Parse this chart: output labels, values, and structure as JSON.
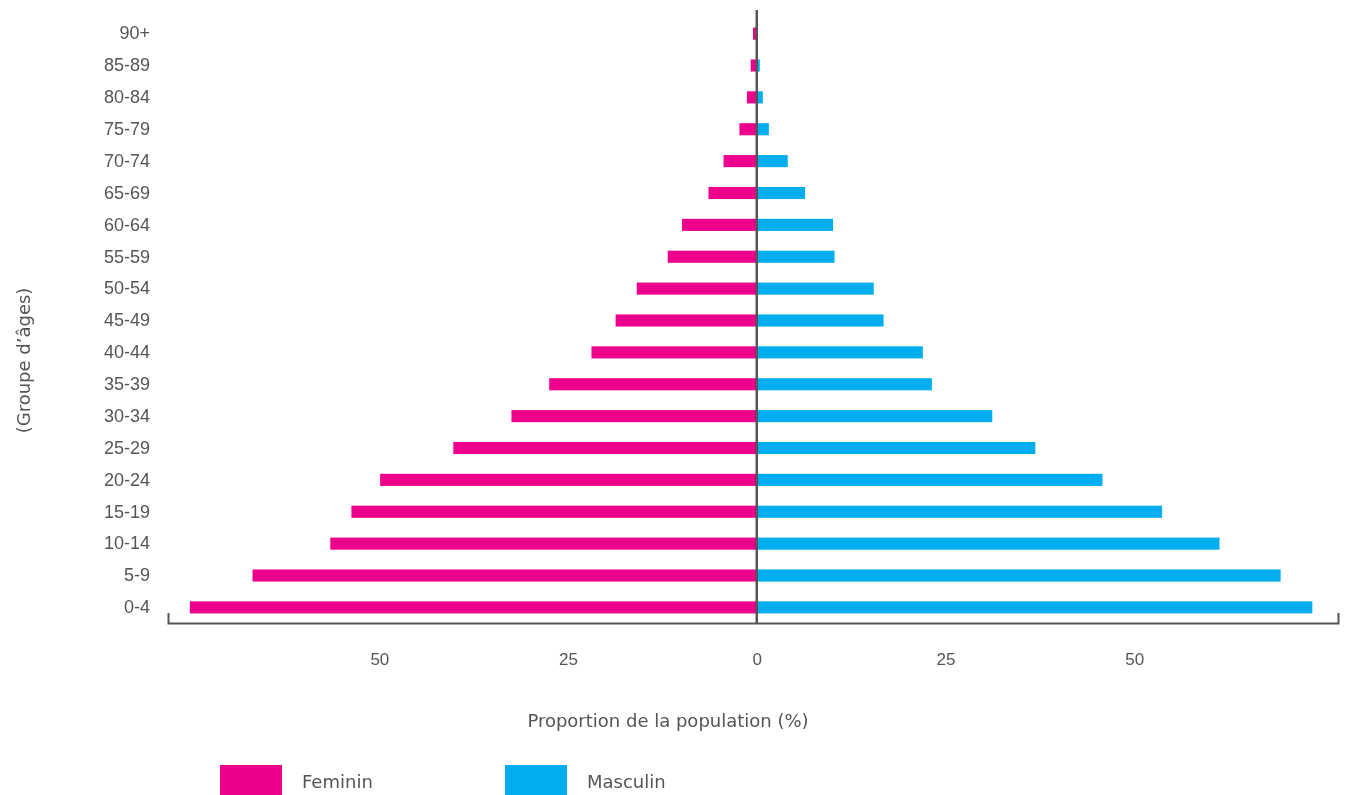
{
  "chart_data": {
    "type": "bar",
    "orientation": "horizontal",
    "stacked": true,
    "xlabel": "Proportion de la population (%)",
    "ylabel": "(Groupe d’âges)",
    "categories": [
      "90+",
      "85-89",
      "80-84",
      "75-79",
      "70-74",
      "65-69",
      "60-64",
      "55-59",
      "50-54",
      "45-49",
      "40-44",
      "35-39",
      "30-34",
      "25-29",
      "20-24",
      "15-19",
      "10-14",
      "5-9",
      "0-4"
    ],
    "series": [
      {
        "name": "Feminin",
        "color": "#ec008c",
        "values": [
          -0.5,
          -0.8,
          -1.3,
          -2.3,
          -4.4,
          -6.4,
          -9.9,
          -11.8,
          -15.9,
          -18.7,
          -21.9,
          -27.5,
          -32.5,
          -40.2,
          -49.9,
          -53.7,
          -56.5,
          -66.8,
          -75.1
        ]
      },
      {
        "name": "Masculin",
        "color": "#00aeef",
        "values": [
          0,
          0.4,
          0.8,
          1.6,
          4.1,
          6.4,
          10.1,
          10.3,
          15.5,
          16.8,
          22.0,
          23.2,
          31.2,
          36.9,
          45.8,
          53.7,
          61.3,
          69.4,
          73.6
        ]
      }
    ],
    "xlim": [
      -78,
      77
    ],
    "xticks": [
      {
        "value": -50,
        "label": "50"
      },
      {
        "value": -25,
        "label": "25"
      },
      0,
      25,
      50
    ],
    "legend": "bottom left"
  }
}
